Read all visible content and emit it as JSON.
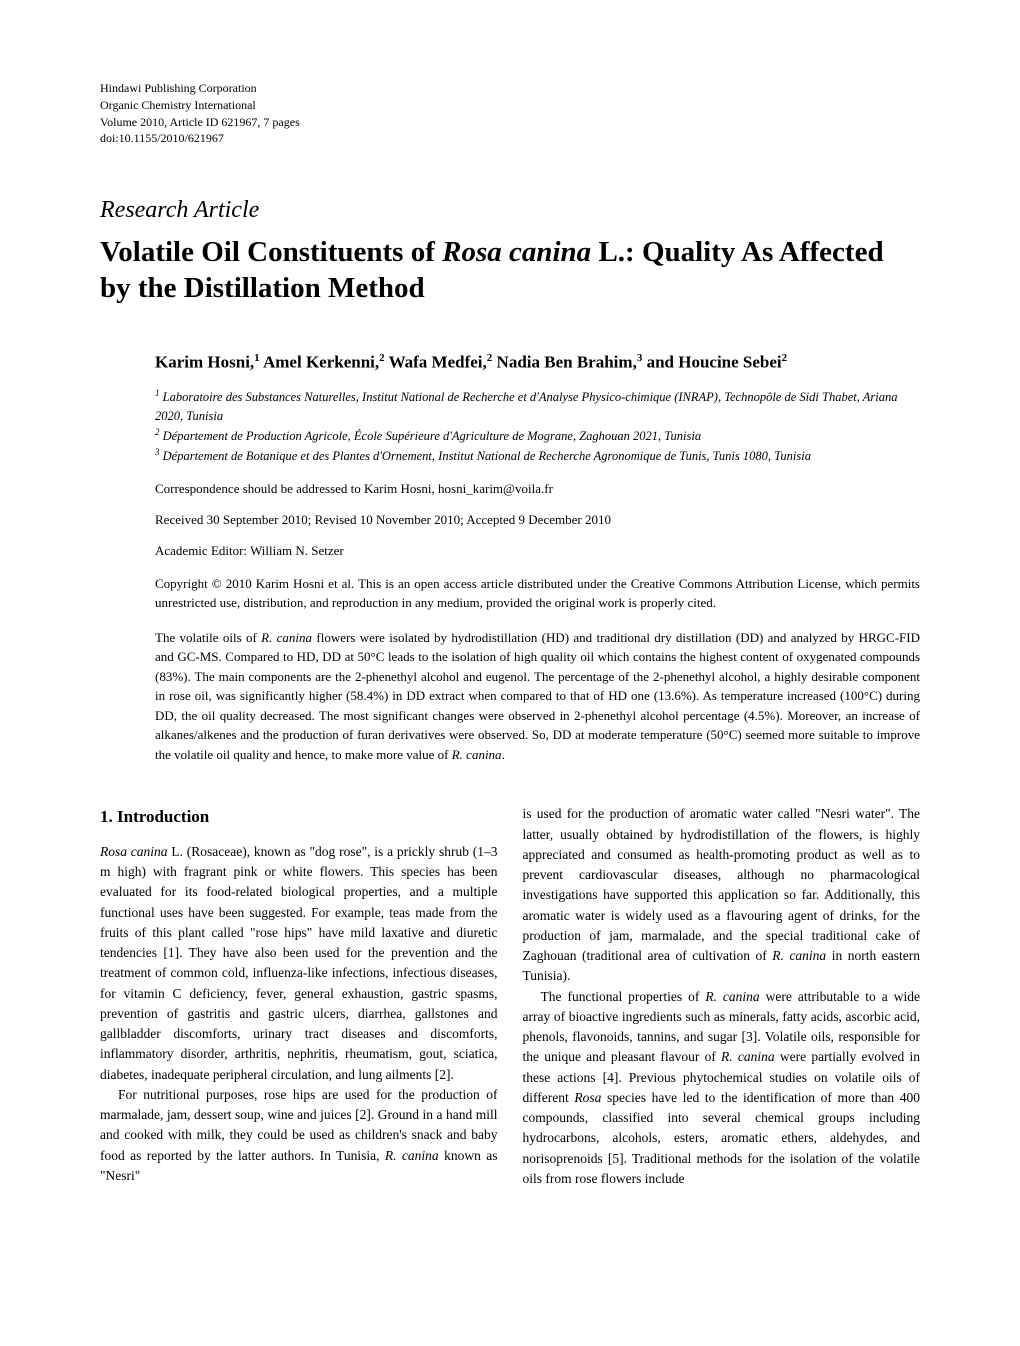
{
  "publisher": {
    "line1": "Hindawi Publishing Corporation",
    "line2": "Organic Chemistry International",
    "line3": "Volume 2010, Article ID 621967, 7 pages",
    "line4": "doi:10.1155/2010/621967"
  },
  "article_type": "Research Article",
  "title_parts": {
    "pre": "Volatile Oil Constituents of ",
    "species": "Rosa canina",
    "post": " L.: Quality As Affected by the Distillation Method"
  },
  "authors_parts": [
    {
      "name": "Karim Hosni,",
      "sup": "1"
    },
    {
      "name": " Amel Kerkenni,",
      "sup": "2"
    },
    {
      "name": " Wafa Medfei,",
      "sup": "2"
    },
    {
      "name": " Nadia Ben Brahim,",
      "sup": "3"
    },
    {
      "name": " and Houcine Sebei",
      "sup": "2"
    }
  ],
  "affiliations": [
    {
      "sup": "1",
      "text": "Laboratoire des Substances Naturelles, Institut National de Recherche et d'Analyse Physico-chimique (INRAP), Technopôle de Sidi Thabet, Ariana 2020, Tunisia"
    },
    {
      "sup": "2",
      "text": "Département de Production Agricole, École Supérieure d'Agriculture de Mograne, Zaghouan 2021, Tunisia"
    },
    {
      "sup": "3",
      "text": "Département de Botanique et des Plantes d'Ornement, Institut National de Recherche Agronomique de Tunis, Tunis 1080, Tunisia"
    }
  ],
  "correspondence": "Correspondence should be addressed to Karim Hosni, hosni_karim@voila.fr",
  "dates": "Received 30 September 2010; Revised 10 November 2010; Accepted 9 December 2010",
  "editor": "Academic Editor: William N. Setzer",
  "copyright": "Copyright © 2010 Karim Hosni et al. This is an open access article distributed under the Creative Commons Attribution License, which permits unrestricted use, distribution, and reproduction in any medium, provided the original work is properly cited.",
  "abstract_html": "The volatile oils of <span class=\"species\">R. canina</span> flowers were isolated by hydrodistillation (HD) and traditional dry distillation (DD) and analyzed by HRGC-FID and GC-MS. Compared to HD, DD at 50°C leads to the isolation of high quality oil which contains the highest content of oxygenated compounds (83%). The main components are the 2-phenethyl alcohol and eugenol. The percentage of the 2-phenethyl alcohol, a highly desirable component in rose oil, was significantly higher (58.4%) in DD extract when compared to that of HD one (13.6%). As temperature increased (100°C) during DD, the oil quality decreased. The most significant changes were observed in 2-phenethyl alcohol percentage (4.5%). Moreover, an increase of alkanes/alkenes and the production of furan derivatives were observed. So, DD at moderate temperature (50°C) seemed more suitable to improve the volatile oil quality and hence, to make more value of <span class=\"species\">R. canina</span>.",
  "section_heading": "1. Introduction",
  "col1_p1_html": "<span class=\"species\">Rosa canina</span> L. (Rosaceae), known as \"dog rose\", is a prickly shrub (1–3 m high) with fragrant pink or white flowers. This species has been evaluated for its food-related biological properties, and a multiple functional uses have been suggested. For example, teas made from the fruits of this plant called \"rose hips\" have mild laxative and diuretic tendencies [1]. They have also been used for the prevention and the treatment of common cold, influenza-like infections, infectious diseases, for vitamin C deficiency, fever, general exhaustion, gastric spasms, prevention of gastritis and gastric ulcers, diarrhea, gallstones and gallbladder discomforts, urinary tract diseases and discomforts, inflammatory disorder, arthritis, nephritis, rheumatism, gout, sciatica, diabetes, inadequate peripheral circulation, and lung ailments [2].",
  "col1_p2_html": "For nutritional purposes, rose hips are used for the production of marmalade, jam, dessert soup, wine and juices [2]. Ground in a hand mill and cooked with milk, they could be used as children's snack and baby food as reported by the latter authors. In Tunisia, <span class=\"species\">R. canina</span> known as \"Nesri\"",
  "col2_p1_html": "is used for the production of aromatic water called \"Nesri water\". The latter, usually obtained by hydrodistillation of the flowers, is highly appreciated and consumed as health-promoting product as well as to prevent cardiovascular diseases, although no pharmacological investigations have supported this application so far. Additionally, this aromatic water is widely used as a flavouring agent of drinks, for the production of jam, marmalade, and the special traditional cake of Zaghouan (traditional area of cultivation of <span class=\"species\">R. canina</span> in north eastern Tunisia).",
  "col2_p2_html": "The functional properties of <span class=\"species\">R. canina</span> were attributable to a wide array of bioactive ingredients such as minerals, fatty acids, ascorbic acid, phenols, flavonoids, tannins, and sugar [3]. Volatile oils, responsible for the unique and pleasant flavour of <span class=\"species\">R. canina</span> were partially evolved in these actions [4]. Previous phytochemical studies on volatile oils of different <span class=\"species\">Rosa</span> species have led to the identification of more than 400 compounds, classified into several chemical groups including hydrocarbons, alcohols, esters, aromatic ethers, aldehydes, and norisoprenoids [5]. Traditional methods for the isolation of the volatile oils from rose flowers include",
  "styling": {
    "page_background": "#ffffff",
    "text_color": "#000000",
    "body_font_size": 13.5,
    "title_font_size": 29,
    "article_type_font_size": 24,
    "heading_font_size": 17,
    "small_font_size": 12,
    "column_gap": 25,
    "left_indent": 55
  }
}
